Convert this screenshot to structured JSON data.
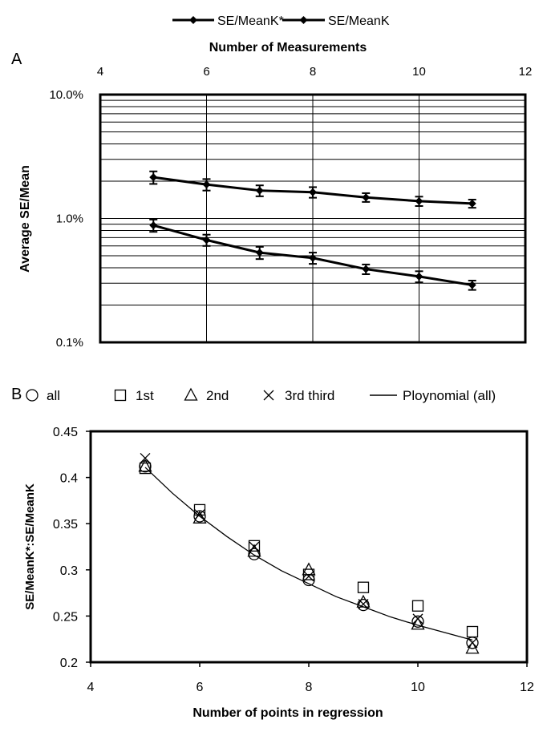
{
  "chart_data": [
    {
      "panel": "A",
      "type": "line",
      "title": "",
      "xlabel": "Number of Measurements",
      "ylabel": "Average SE/Mean",
      "xlim": [
        4,
        12
      ],
      "ylim": [
        0.1,
        10.0
      ],
      "y_scale": "log",
      "x_axis_position": "top",
      "x_ticks": [
        "4",
        "6",
        "8",
        "10",
        "12"
      ],
      "y_ticks": [
        "0.1%",
        "1.0%",
        "10.0%"
      ],
      "grid": true,
      "legend_position": "top",
      "series": [
        {
          "name": "SE/MeanK*",
          "x": [
            5,
            6,
            7,
            8,
            9,
            10,
            11
          ],
          "y": [
            0.88,
            0.67,
            0.53,
            0.48,
            0.39,
            0.34,
            0.29
          ],
          "err": [
            0.1,
            0.07,
            0.06,
            0.05,
            0.035,
            0.035,
            0.025
          ]
        },
        {
          "name": "SE/MeanK",
          "x": [
            5,
            6,
            7,
            8,
            9,
            10,
            11
          ],
          "y": [
            2.15,
            1.88,
            1.68,
            1.63,
            1.48,
            1.38,
            1.32
          ],
          "err": [
            0.25,
            0.2,
            0.17,
            0.16,
            0.12,
            0.12,
            0.1
          ]
        }
      ]
    },
    {
      "panel": "B",
      "type": "scatter",
      "title": "",
      "xlabel": "Number of points in regression",
      "ylabel": "SE/MeanK*:SE/MeanK",
      "xlim": [
        4,
        12
      ],
      "ylim": [
        0.2,
        0.45
      ],
      "x_ticks": [
        "4",
        "6",
        "8",
        "10",
        "12"
      ],
      "y_ticks": [
        "0.2",
        "0.25",
        "0.3",
        "0.35",
        "0.4",
        "0.45"
      ],
      "grid": false,
      "legend_position": "top",
      "series": [
        {
          "name": "all",
          "marker": "circle",
          "x": [
            5,
            6,
            7,
            8,
            9,
            10,
            11
          ],
          "y": [
            0.412,
            0.358,
            0.317,
            0.289,
            0.262,
            0.244,
            0.221
          ]
        },
        {
          "name": "1st",
          "marker": "square",
          "x": [
            5,
            6,
            7,
            8,
            9,
            10,
            11
          ],
          "y": [
            0.41,
            0.365,
            0.326,
            0.295,
            0.281,
            0.261,
            0.233
          ]
        },
        {
          "name": "2nd",
          "marker": "triangle",
          "x": [
            5,
            6,
            7,
            8,
            9,
            10,
            11
          ],
          "y": [
            0.412,
            0.356,
            0.32,
            0.3,
            0.265,
            0.241,
            0.215
          ]
        },
        {
          "name": "3rd third",
          "marker": "x",
          "x": [
            5,
            6,
            7,
            8,
            9,
            10,
            11
          ],
          "y": [
            0.421,
            0.36,
            0.325,
            0.293,
            0.263,
            0.247,
            0.221
          ]
        },
        {
          "name": "Ploynomial (all)",
          "marker": "line",
          "x": [
            5,
            5.5,
            6,
            6.5,
            7,
            7.5,
            8,
            8.5,
            9,
            9.5,
            10,
            10.5,
            11
          ],
          "y": [
            0.411,
            0.383,
            0.358,
            0.336,
            0.316,
            0.299,
            0.285,
            0.271,
            0.26,
            0.249,
            0.24,
            0.232,
            0.224
          ]
        }
      ]
    }
  ]
}
